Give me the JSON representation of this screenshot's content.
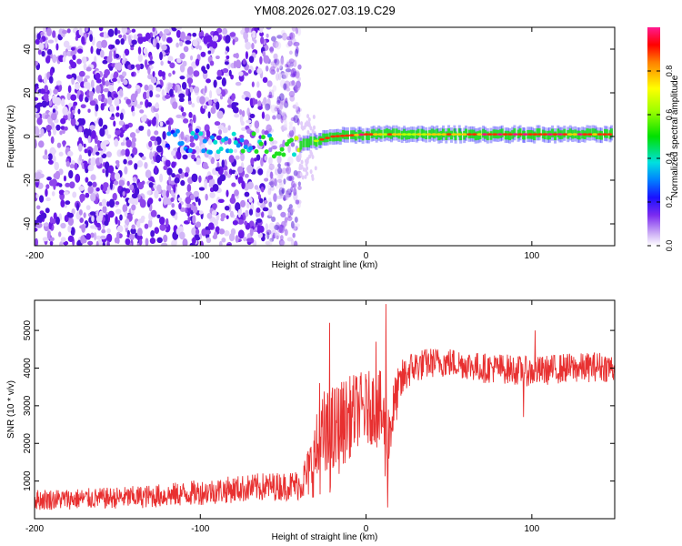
{
  "title": "YM08.2026.027.03.19.C29",
  "chart_data": [
    {
      "type": "heatmap",
      "xlabel": "Height of straight line (km)",
      "ylabel": "Frequency (Hz)",
      "xlim": [
        -200,
        150
      ],
      "ylim": [
        -50,
        50
      ],
      "xticks": [
        -200,
        -100,
        0,
        100
      ],
      "yticks": [
        -40,
        -20,
        0,
        20,
        40
      ],
      "colorbar": {
        "label": "Normalized spectral amplitude",
        "range": [
          0,
          1
        ],
        "ticks": [
          0.0,
          0.2,
          0.4,
          0.6,
          0.8
        ]
      },
      "ridge": [
        {
          "x": -120,
          "y": -1,
          "amp": 0.25
        },
        {
          "x": -100,
          "y": -2,
          "amp": 0.3
        },
        {
          "x": -80,
          "y": -3,
          "amp": 0.35
        },
        {
          "x": -60,
          "y": -4,
          "amp": 0.4
        },
        {
          "x": -45,
          "y": -5,
          "amp": 0.45
        },
        {
          "x": -30,
          "y": -2,
          "amp": 0.7
        },
        {
          "x": -20,
          "y": 0,
          "amp": 0.9
        },
        {
          "x": 0,
          "y": 1,
          "amp": 0.85
        },
        {
          "x": 20,
          "y": 1,
          "amp": 0.7
        },
        {
          "x": 50,
          "y": 1,
          "amp": 0.8
        },
        {
          "x": 90,
          "y": 1,
          "amp": 0.95
        },
        {
          "x": 120,
          "y": 1,
          "amp": 0.9
        },
        {
          "x": 150,
          "y": 1,
          "amp": 0.85
        }
      ]
    },
    {
      "type": "line",
      "xlabel": "Height of straight line (km)",
      "ylabel": "SNR (10 * v/v)",
      "xlim": [
        -200,
        150
      ],
      "ylim": [
        0,
        5800
      ],
      "xticks": [
        -200,
        -100,
        0,
        100
      ],
      "yticks": [
        1000,
        2000,
        3000,
        4000,
        5000
      ],
      "series": [
        {
          "name": "SNR",
          "color": "#e83030",
          "x": [
            -200,
            -180,
            -160,
            -140,
            -120,
            -100,
            -80,
            -60,
            -50,
            -40,
            -35,
            -30,
            -25,
            -22,
            -20,
            -15,
            -10,
            -5,
            0,
            5,
            10,
            12,
            14,
            18,
            22,
            26,
            30,
            35,
            40,
            50,
            60,
            70,
            80,
            90,
            100,
            110,
            120,
            130,
            140,
            150
          ],
          "mean": [
            500,
            520,
            540,
            570,
            620,
            700,
            780,
            850,
            860,
            900,
            1200,
            1700,
            2100,
            2000,
            2200,
            2500,
            2700,
            2900,
            2900,
            3000,
            2700,
            1900,
            2300,
            3200,
            3700,
            3950,
            4050,
            4100,
            4150,
            4150,
            4100,
            4000,
            4000,
            3950,
            3900,
            3950,
            4000,
            4000,
            4050,
            4000
          ],
          "spread": [
            280,
            280,
            280,
            300,
            320,
            340,
            360,
            380,
            380,
            420,
            700,
            1100,
            1400,
            1400,
            1400,
            1200,
            1100,
            1000,
            1000,
            1000,
            1200,
            1300,
            1000,
            700,
            550,
            480,
            450,
            420,
            400,
            400,
            400,
            400,
            400,
            400,
            400,
            400,
            400,
            400,
            400,
            400
          ],
          "spikes": [
            {
              "x": -22,
              "y": 5200
            },
            {
              "x": -28,
              "y": 3600
            },
            {
              "x": 6,
              "y": 4700
            },
            {
              "x": 12,
              "y": 5700
            },
            {
              "x": 13,
              "y": 300
            },
            {
              "x": 95,
              "y": 2700
            },
            {
              "x": 102,
              "y": 5000
            }
          ]
        }
      ]
    }
  ]
}
